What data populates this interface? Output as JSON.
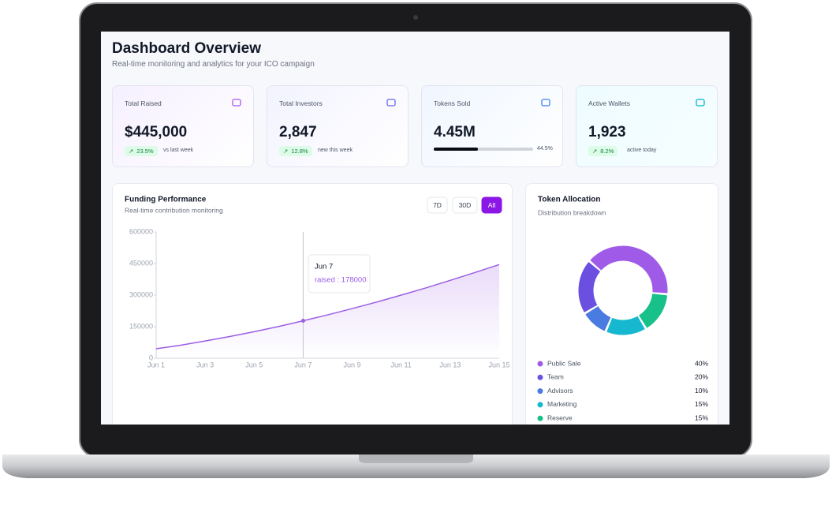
{
  "header": {
    "title": "Dashboard Overview",
    "subtitle": "Real-time monitoring and analytics for your ICO campaign"
  },
  "cards": [
    {
      "title": "Total Raised",
      "value": "$445,000",
      "change": "23.5%",
      "note": "vs last week",
      "color": "#a855f7"
    },
    {
      "title": "Total Investors",
      "value": "2,847",
      "change": "12.8%",
      "note": "new this week",
      "color": "#6366f1"
    },
    {
      "title": "Tokens Sold",
      "value": "4.45M",
      "progress": 44.5,
      "progress_label": "44.5%",
      "color": "#3b82f6"
    },
    {
      "title": "Active Wallets",
      "value": "1,923",
      "change": "8.2%",
      "note": "active today",
      "color": "#06b6d4"
    }
  ],
  "chart_data": [
    {
      "type": "line",
      "title": "Funding Performance",
      "subtitle": "Real-time contribution monitoring",
      "buttons": [
        "7D",
        "30D",
        "All"
      ],
      "active_button": 2,
      "categories": [
        "Jun 1",
        null,
        "Jun 3",
        null,
        "Jun 5",
        null,
        "Jun 7",
        null,
        "Jun 9",
        null,
        "Jun 11",
        null,
        "Jun 13",
        null,
        "Jun 15"
      ],
      "values": [
        45000,
        62000,
        82000,
        103000,
        126000,
        151000,
        178000,
        206000,
        236000,
        267000,
        300000,
        334000,
        370000,
        407000,
        445000
      ],
      "color": "#9b5de5",
      "ylim": [
        0,
        600000
      ],
      "yticks": [
        0,
        150000,
        300000,
        450000,
        600000
      ],
      "tooltip": {
        "index": 6,
        "category": "Jun 7",
        "text": "raised : 178000"
      }
    },
    {
      "type": "pie",
      "title": "Token Allocation",
      "subtitle": "Distribution breakdown",
      "categories": [
        "Public Sale",
        "Team",
        "Advisors",
        "Marketing",
        "Reserve"
      ],
      "values": [
        40,
        20,
        10,
        15,
        15
      ],
      "value_labels": [
        "40%",
        "20%",
        "10%",
        "15%",
        "15%"
      ],
      "colors": [
        "#9f5ae8",
        "#6a4fe0",
        "#4a7be0",
        "#16b8d0",
        "#18c08a"
      ]
    }
  ]
}
